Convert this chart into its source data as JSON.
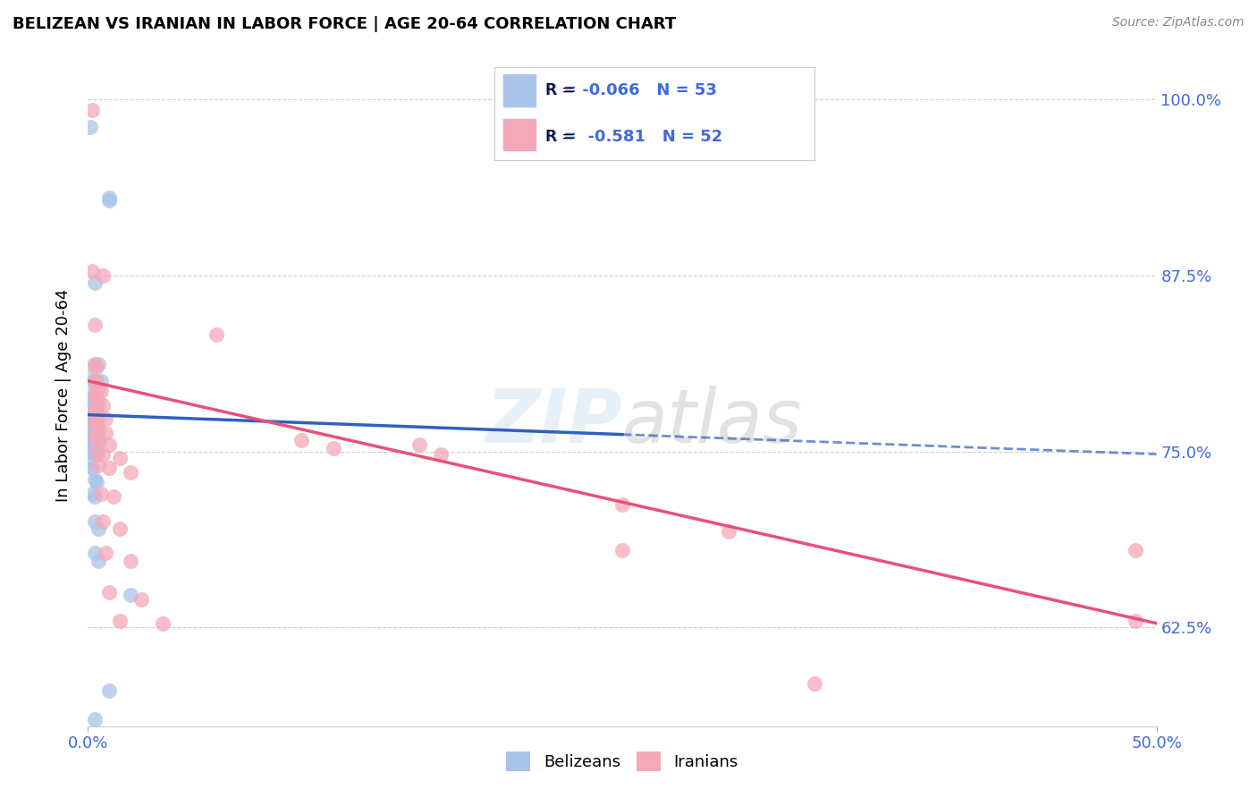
{
  "title": "BELIZEAN VS IRANIAN IN LABOR FORCE | AGE 20-64 CORRELATION CHART",
  "source": "Source: ZipAtlas.com",
  "ylabel_label": "In Labor Force | Age 20-64",
  "watermark": "ZIPatlas",
  "legend_blue": {
    "R": "-0.066",
    "N": "53",
    "label": "Belizeans"
  },
  "legend_pink": {
    "R": "-0.581",
    "N": "52",
    "label": "Iranians"
  },
  "xlim": [
    0.0,
    0.5
  ],
  "ylim": [
    0.555,
    1.025
  ],
  "blue_color": "#a8c4e8",
  "pink_color": "#f4a8b8",
  "blue_line_color": "#3060c0",
  "pink_line_color": "#e8507a",
  "blue_line_solid": [
    [
      0.0,
      0.776
    ],
    [
      0.25,
      0.762
    ]
  ],
  "blue_line_dashed": [
    [
      0.25,
      0.762
    ],
    [
      0.5,
      0.748
    ]
  ],
  "pink_line": [
    [
      0.0,
      0.8
    ],
    [
      0.5,
      0.628
    ]
  ],
  "blue_scatter": [
    [
      0.001,
      0.98
    ],
    [
      0.01,
      0.93
    ],
    [
      0.01,
      0.928
    ],
    [
      0.003,
      0.87
    ],
    [
      0.002,
      0.81
    ],
    [
      0.005,
      0.812
    ],
    [
      0.001,
      0.8
    ],
    [
      0.003,
      0.8
    ],
    [
      0.004,
      0.8
    ],
    [
      0.006,
      0.8
    ],
    [
      0.001,
      0.79
    ],
    [
      0.002,
      0.788
    ],
    [
      0.003,
      0.785
    ],
    [
      0.004,
      0.783
    ],
    [
      0.001,
      0.78
    ],
    [
      0.002,
      0.778
    ],
    [
      0.003,
      0.778
    ],
    [
      0.004,
      0.776
    ],
    [
      0.001,
      0.775
    ],
    [
      0.002,
      0.773
    ],
    [
      0.003,
      0.773
    ],
    [
      0.004,
      0.772
    ],
    [
      0.0,
      0.77
    ],
    [
      0.001,
      0.77
    ],
    [
      0.002,
      0.768
    ],
    [
      0.003,
      0.768
    ],
    [
      0.0,
      0.765
    ],
    [
      0.001,
      0.765
    ],
    [
      0.002,
      0.763
    ],
    [
      0.003,
      0.763
    ],
    [
      0.0,
      0.76
    ],
    [
      0.001,
      0.76
    ],
    [
      0.002,
      0.758
    ],
    [
      0.005,
      0.758
    ],
    [
      0.0,
      0.755
    ],
    [
      0.001,
      0.755
    ],
    [
      0.003,
      0.753
    ],
    [
      0.0,
      0.75
    ],
    [
      0.002,
      0.75
    ],
    [
      0.004,
      0.748
    ],
    [
      0.0,
      0.74
    ],
    [
      0.002,
      0.738
    ],
    [
      0.003,
      0.73
    ],
    [
      0.004,
      0.728
    ],
    [
      0.002,
      0.72
    ],
    [
      0.003,
      0.718
    ],
    [
      0.003,
      0.7
    ],
    [
      0.005,
      0.695
    ],
    [
      0.003,
      0.678
    ],
    [
      0.005,
      0.672
    ],
    [
      0.02,
      0.648
    ],
    [
      0.01,
      0.58
    ],
    [
      0.003,
      0.56
    ]
  ],
  "pink_scatter": [
    [
      0.002,
      0.992
    ],
    [
      0.002,
      0.878
    ],
    [
      0.007,
      0.875
    ],
    [
      0.003,
      0.84
    ],
    [
      0.06,
      0.833
    ],
    [
      0.003,
      0.812
    ],
    [
      0.004,
      0.81
    ],
    [
      0.003,
      0.8
    ],
    [
      0.004,
      0.798
    ],
    [
      0.005,
      0.795
    ],
    [
      0.006,
      0.793
    ],
    [
      0.003,
      0.79
    ],
    [
      0.004,
      0.788
    ],
    [
      0.005,
      0.785
    ],
    [
      0.007,
      0.783
    ],
    [
      0.003,
      0.78
    ],
    [
      0.004,
      0.778
    ],
    [
      0.005,
      0.775
    ],
    [
      0.008,
      0.773
    ],
    [
      0.003,
      0.77
    ],
    [
      0.004,
      0.768
    ],
    [
      0.005,
      0.765
    ],
    [
      0.008,
      0.763
    ],
    [
      0.003,
      0.76
    ],
    [
      0.005,
      0.758
    ],
    [
      0.01,
      0.755
    ],
    [
      0.004,
      0.75
    ],
    [
      0.007,
      0.748
    ],
    [
      0.015,
      0.745
    ],
    [
      0.005,
      0.74
    ],
    [
      0.01,
      0.738
    ],
    [
      0.02,
      0.735
    ],
    [
      0.006,
      0.72
    ],
    [
      0.012,
      0.718
    ],
    [
      0.007,
      0.7
    ],
    [
      0.015,
      0.695
    ],
    [
      0.008,
      0.678
    ],
    [
      0.02,
      0.672
    ],
    [
      0.01,
      0.65
    ],
    [
      0.025,
      0.645
    ],
    [
      0.015,
      0.63
    ],
    [
      0.035,
      0.628
    ],
    [
      0.1,
      0.758
    ],
    [
      0.115,
      0.752
    ],
    [
      0.155,
      0.755
    ],
    [
      0.165,
      0.748
    ],
    [
      0.3,
      0.693
    ],
    [
      0.34,
      0.585
    ],
    [
      0.49,
      0.68
    ],
    [
      0.49,
      0.63
    ],
    [
      0.25,
      0.712
    ],
    [
      0.25,
      0.68
    ]
  ]
}
